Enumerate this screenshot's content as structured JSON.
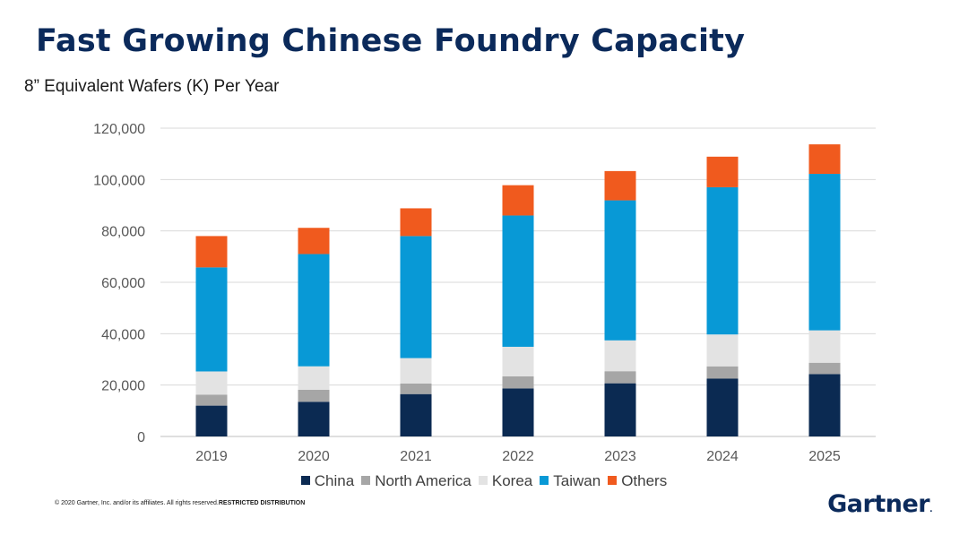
{
  "slide": {
    "title": "Fast Growing Chinese Foundry Capacity",
    "subtitle": "8” Equivalent Wafers (K) Per Year",
    "footer_text": "© 2020 Gartner, Inc. and/or its affiliates. All rights reserved.",
    "footer_bold": "RESTRICTED DISTRIBUTION",
    "logo_text": "Gartner",
    "logo_dot": "."
  },
  "chart_data": {
    "type": "bar",
    "stacked": true,
    "categories": [
      "2019",
      "2020",
      "2021",
      "2022",
      "2023",
      "2024",
      "2025"
    ],
    "series": [
      {
        "name": "China",
        "color": "#0b2a52",
        "values": [
          12000,
          13500,
          16500,
          18700,
          20700,
          22500,
          24300
        ]
      },
      {
        "name": "North America",
        "color": "#a6a6a6",
        "values": [
          4300,
          4700,
          4100,
          4700,
          4700,
          4800,
          4400
        ]
      },
      {
        "name": "Korea",
        "color": "#e3e3e3",
        "values": [
          9000,
          9100,
          9900,
          11500,
          12000,
          12400,
          12600
        ]
      },
      {
        "name": "Taiwan",
        "color": "#0899d6",
        "values": [
          40500,
          43700,
          47500,
          51100,
          54500,
          57300,
          60900
        ]
      },
      {
        "name": "Others",
        "color": "#f05a1e",
        "values": [
          12200,
          10200,
          10800,
          11800,
          11400,
          11900,
          11500
        ]
      }
    ],
    "yticks": [
      "0",
      "20,000",
      "40,000",
      "60,000",
      "80,000",
      "100,000",
      "120,000"
    ],
    "ylim": [
      0,
      120000
    ],
    "grid": true,
    "legend": "bottom"
  }
}
